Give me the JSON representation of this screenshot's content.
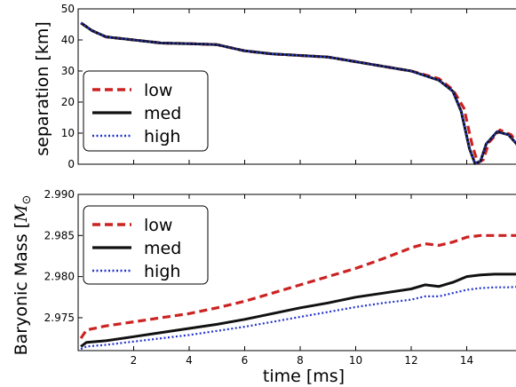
{
  "chart_data": [
    {
      "type": "line",
      "title": "",
      "xlabel": "",
      "ylabel": "separation [km]",
      "xlim": [
        0,
        16
      ],
      "ylim": [
        0,
        50
      ],
      "xticks": [],
      "yticks": [
        "0",
        "10",
        "20",
        "30",
        "40",
        "50"
      ],
      "legend": {
        "placement": "lower-left",
        "entries": [
          "low",
          "med",
          "high"
        ]
      },
      "series": [
        {
          "name": "low",
          "color": "#cc2222",
          "style": "dashed",
          "x": [
            0.1,
            0.5,
            1,
            1.5,
            2,
            3,
            4,
            5,
            6,
            7,
            8,
            9,
            10,
            11,
            12,
            13,
            13.5,
            13.9,
            14.2,
            14.4,
            14.6,
            14.8,
            15.2,
            15.6,
            15.8,
            16
          ],
          "y": [
            45.5,
            43,
            41,
            40.5,
            40,
            39,
            38.8,
            38.5,
            36.5,
            35.5,
            35,
            34.5,
            33,
            31.5,
            30,
            27.5,
            24,
            18,
            6,
            0.5,
            1.5,
            7,
            11,
            9.5,
            7,
            2
          ]
        },
        {
          "name": "med",
          "color": "#111111",
          "style": "solid",
          "x": [
            0.1,
            0.5,
            1,
            1.5,
            2,
            3,
            4,
            5,
            6,
            7,
            8,
            9,
            10,
            11,
            12,
            13,
            13.5,
            13.8,
            14.1,
            14.3,
            14.5,
            14.7,
            15.1,
            15.5,
            15.8,
            16
          ],
          "y": [
            45.5,
            43,
            41,
            40.5,
            40,
            39,
            38.8,
            38.5,
            36.5,
            35.5,
            35,
            34.5,
            33,
            31.5,
            30,
            27,
            23.5,
            17,
            5,
            0.2,
            1,
            6.5,
            10.5,
            9.5,
            6.5,
            1.5
          ]
        },
        {
          "name": "high",
          "color": "#2233cc",
          "style": "dotted",
          "x": [
            0.1,
            0.5,
            1,
            1.5,
            2,
            3,
            4,
            5,
            6,
            7,
            8,
            9,
            10,
            11,
            12,
            13,
            13.5,
            13.8,
            14.1,
            14.3,
            14.5,
            14.7,
            15.1,
            15.5,
            15.8,
            16
          ],
          "y": [
            45.5,
            43,
            41,
            40.5,
            40,
            39,
            38.8,
            38.5,
            36.5,
            35.5,
            35,
            34.5,
            33,
            31.5,
            30,
            27,
            23.5,
            17,
            5,
            0.2,
            1,
            6.5,
            10.5,
            9.5,
            6.5,
            1.5
          ]
        }
      ]
    },
    {
      "type": "line",
      "title": "",
      "xlabel": "time [ms]",
      "ylabel_text": "Baryonic Mass [",
      "ylabel_math": "M",
      "ylabel_sub": "⊙",
      "ylabel_close": "",
      "xlim": [
        0,
        16
      ],
      "ylim": [
        2.971,
        2.99
      ],
      "xticks": [
        "2",
        "4",
        "6",
        "8",
        "10",
        "12",
        "14"
      ],
      "yticks": [
        "2.975",
        "2.980",
        "2.985",
        "2.990"
      ],
      "legend": {
        "placement": "upper-left",
        "entries": [
          "low",
          "med",
          "high"
        ]
      },
      "series": [
        {
          "name": "low",
          "color": "#cc2222",
          "style": "dashed",
          "x": [
            0.1,
            0.3,
            1,
            2,
            3,
            4,
            5,
            6,
            7,
            8,
            9,
            10,
            11,
            12,
            12.5,
            13,
            13.5,
            14,
            14.5,
            15,
            15.5,
            16
          ],
          "y": [
            2.9725,
            2.9735,
            2.974,
            2.9745,
            2.975,
            2.9755,
            2.9762,
            2.977,
            2.978,
            2.979,
            2.98,
            2.981,
            2.9822,
            2.9835,
            2.984,
            2.9838,
            2.9842,
            2.9848,
            2.985,
            2.985,
            2.985,
            2.985
          ]
        },
        {
          "name": "med",
          "color": "#111111",
          "style": "solid",
          "x": [
            0.1,
            0.3,
            1,
            2,
            3,
            4,
            5,
            6,
            7,
            8,
            9,
            10,
            11,
            12,
            12.5,
            13,
            13.5,
            14,
            14.5,
            15,
            15.5,
            16
          ],
          "y": [
            2.9715,
            2.972,
            2.9722,
            2.9727,
            2.9732,
            2.9737,
            2.9742,
            2.9748,
            2.9755,
            2.9762,
            2.9768,
            2.9775,
            2.978,
            2.9785,
            2.979,
            2.9788,
            2.9793,
            2.98,
            2.9802,
            2.9803,
            2.9803,
            2.9803
          ]
        },
        {
          "name": "high",
          "color": "#2233cc",
          "style": "dotted",
          "x": [
            0.1,
            0.3,
            1,
            2,
            3,
            4,
            5,
            6,
            7,
            8,
            9,
            10,
            11,
            12,
            12.5,
            13,
            13.5,
            14,
            14.5,
            15,
            15.5,
            16
          ],
          "y": [
            2.9712,
            2.9715,
            2.9717,
            2.9721,
            2.9725,
            2.9729,
            2.9734,
            2.9739,
            2.9745,
            2.9751,
            2.9757,
            2.9763,
            2.9768,
            2.9772,
            2.9776,
            2.9776,
            2.978,
            2.9784,
            2.9786,
            2.9787,
            2.9787,
            2.9788
          ]
        }
      ]
    }
  ]
}
